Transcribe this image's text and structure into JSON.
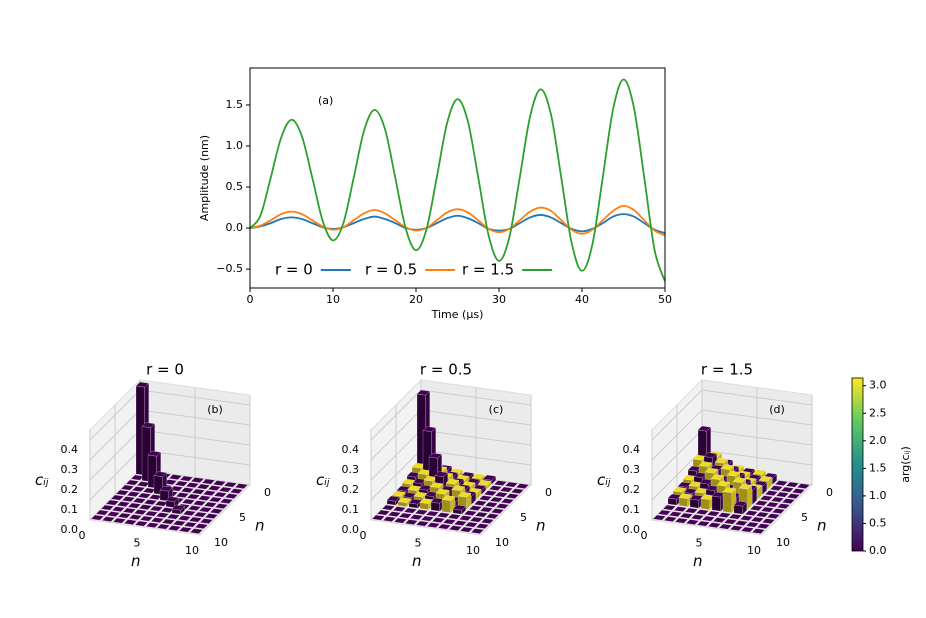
{
  "chart_data": [
    {
      "type": "line",
      "annotation": "(a)",
      "xlabel": "Time (μs)",
      "ylabel": "Amplitude (nm)",
      "x": [
        0,
        1.25,
        2.5,
        3.75,
        5,
        6.25,
        7.5,
        8.75,
        10,
        11.25,
        12.5,
        13.75,
        15,
        16.25,
        17.5,
        18.75,
        20,
        21.25,
        22.5,
        23.75,
        25,
        26.25,
        27.5,
        28.75,
        30,
        31.25,
        32.5,
        33.75,
        35,
        36.25,
        37.5,
        38.75,
        40,
        41.25,
        42.5,
        43.75,
        45,
        46.25,
        47.5,
        48.75,
        50
      ],
      "series": [
        {
          "name": "r = 0",
          "color": "#1f77b4",
          "values": [
            0,
            0.02,
            0.06,
            0.11,
            0.13,
            0.11,
            0.06,
            0.01,
            -0.01,
            0.01,
            0.06,
            0.11,
            0.14,
            0.11,
            0.06,
            0.0,
            -0.02,
            0.0,
            0.06,
            0.12,
            0.15,
            0.12,
            0.06,
            -0.01,
            -0.03,
            -0.01,
            0.06,
            0.13,
            0.16,
            0.13,
            0.06,
            -0.01,
            -0.04,
            -0.01,
            0.06,
            0.14,
            0.17,
            0.14,
            0.06,
            -0.02,
            -0.06
          ]
        },
        {
          "name": "r = 0.5",
          "color": "#ff7f0e",
          "values": [
            0,
            0.03,
            0.095,
            0.17,
            0.2,
            0.17,
            0.095,
            0.02,
            -0.02,
            0.01,
            0.095,
            0.18,
            0.22,
            0.18,
            0.095,
            0.01,
            -0.03,
            0.0,
            0.095,
            0.19,
            0.23,
            0.19,
            0.095,
            -0.01,
            -0.05,
            -0.01,
            0.095,
            0.2,
            0.25,
            0.21,
            0.095,
            -0.02,
            -0.07,
            -0.02,
            0.095,
            0.21,
            0.27,
            0.22,
            0.095,
            -0.03,
            -0.09
          ]
        },
        {
          "name": "r = 1.5",
          "color": "#2ca02c",
          "values": [
            0,
            0.15,
            0.615,
            1.1,
            1.32,
            1.12,
            0.615,
            0.09,
            -0.15,
            0.06,
            0.615,
            1.19,
            1.44,
            1.21,
            0.615,
            0.0,
            -0.27,
            -0.02,
            0.615,
            1.28,
            1.57,
            1.3,
            0.615,
            -0.09,
            -0.4,
            -0.11,
            0.615,
            1.36,
            1.69,
            1.39,
            0.615,
            -0.18,
            -0.52,
            -0.2,
            0.615,
            1.45,
            1.81,
            1.47,
            0.615,
            -0.27,
            -0.65
          ]
        }
      ],
      "xlim": [
        0,
        50
      ],
      "xticks": [
        0,
        10,
        20,
        30,
        40,
        50
      ],
      "ylim": [
        -0.73,
        1.95
      ],
      "yticks": [
        {
          "value": -0.5,
          "label": "−0.5"
        },
        {
          "value": 0,
          "label": "0.0"
        },
        0.5,
        {
          "value": 1,
          "label": "1.0"
        },
        1.5
      ],
      "legend": "lower center"
    },
    {
      "type": "bar3d",
      "title": "r = 0",
      "annotation": "(b)",
      "zlabel": "cᵢⱼ",
      "xlabel": "n",
      "ylabel": "n",
      "xlim": [
        0,
        10
      ],
      "ylim": [
        0,
        10
      ],
      "xticks": [
        0,
        5,
        10
      ],
      "yticks": [
        0,
        5,
        10
      ],
      "zlim": [
        0,
        0.45
      ],
      "zticks": [
        {
          "value": 0,
          "label": "0.0"
        },
        0.1,
        0.2,
        0.3,
        0.4
      ],
      "values": [
        [
          0.44,
          0,
          0,
          0,
          0,
          0,
          0
        ],
        [
          0,
          0.27,
          0,
          0,
          0,
          0,
          0
        ],
        [
          0,
          0,
          0.16,
          0,
          0,
          0,
          0
        ],
        [
          0,
          0,
          0,
          0.09,
          0,
          0,
          0
        ],
        [
          0,
          0,
          0,
          0,
          0.05,
          0,
          0
        ],
        [
          0,
          0,
          0,
          0,
          0,
          0.03,
          0
        ],
        [
          0,
          0,
          0,
          0,
          0,
          0,
          0.02
        ]
      ],
      "phase": [
        [
          0,
          0,
          0,
          0,
          0,
          0,
          0
        ],
        [
          0,
          0,
          0,
          0,
          0,
          0,
          0
        ],
        [
          0,
          0,
          0,
          0,
          0,
          0,
          0
        ],
        [
          0,
          0,
          0,
          0,
          0,
          0,
          0
        ],
        [
          0,
          0,
          0,
          0,
          0,
          0,
          0
        ],
        [
          0,
          0,
          0,
          0,
          0,
          0,
          0
        ],
        [
          0,
          0,
          0,
          0,
          0,
          0,
          0
        ]
      ]
    },
    {
      "type": "bar3d",
      "title": "r = 0.5",
      "annotation": "(c)",
      "zlabel": "cᵢⱼ",
      "xlabel": "n",
      "ylabel": "n",
      "xlim": [
        0,
        10
      ],
      "ylim": [
        0,
        10
      ],
      "xticks": [
        0,
        5,
        10
      ],
      "yticks": [
        0,
        5,
        10
      ],
      "zlim": [
        0,
        0.45
      ],
      "zticks": [
        {
          "value": 0,
          "label": "0.0"
        },
        0.1,
        0.2,
        0.3,
        0.4
      ],
      "values": [
        [
          0.4,
          0.06,
          0.04,
          0.03,
          0.02,
          0.02,
          0.02
        ],
        [
          0.06,
          0.25,
          0.06,
          0.04,
          0.03,
          0.02,
          0.02
        ],
        [
          0.04,
          0.06,
          0.15,
          0.06,
          0.04,
          0.03,
          0.02
        ],
        [
          0.03,
          0.04,
          0.06,
          0.09,
          0.06,
          0.04,
          0.03
        ],
        [
          0.02,
          0.03,
          0.04,
          0.06,
          0.05,
          0.06,
          0.04
        ],
        [
          0.02,
          0.02,
          0.03,
          0.04,
          0.06,
          0.03,
          0.06
        ],
        [
          0.02,
          0.02,
          0.02,
          0.03,
          0.04,
          0.06,
          0.02
        ]
      ],
      "phase": [
        [
          0,
          3.14,
          0,
          3.14,
          0,
          3.14,
          0
        ],
        [
          3.14,
          0,
          3.14,
          0,
          3.14,
          0,
          3.14
        ],
        [
          0,
          3.14,
          0,
          3.14,
          0,
          3.14,
          0
        ],
        [
          3.14,
          0,
          3.14,
          0,
          3.14,
          0,
          3.14
        ],
        [
          0,
          3.14,
          0,
          3.14,
          0,
          3.14,
          0
        ],
        [
          3.14,
          0,
          3.14,
          0,
          3.14,
          0,
          3.14
        ],
        [
          0,
          3.14,
          0,
          3.14,
          0,
          3.14,
          0
        ]
      ]
    },
    {
      "type": "bar3d",
      "title": "r = 1.5",
      "annotation": "(d)",
      "zlabel": "cᵢⱼ",
      "xlabel": "n",
      "ylabel": "n",
      "xlim": [
        0,
        10
      ],
      "ylim": [
        0,
        10
      ],
      "xticks": [
        0,
        5,
        10
      ],
      "yticks": [
        0,
        5,
        10
      ],
      "zlim": [
        0,
        0.45
      ],
      "zticks": [
        {
          "value": 0,
          "label": "0.0"
        },
        0.1,
        0.2,
        0.3,
        0.4
      ],
      "values": [
        [
          0.22,
          0.1,
          0.07,
          0.05,
          0.04,
          0.04,
          0.03
        ],
        [
          0.1,
          0.12,
          0.1,
          0.07,
          0.05,
          0.04,
          0.04
        ],
        [
          0.07,
          0.1,
          0.09,
          0.1,
          0.07,
          0.05,
          0.04
        ],
        [
          0.05,
          0.07,
          0.1,
          0.07,
          0.1,
          0.07,
          0.05
        ],
        [
          0.04,
          0.05,
          0.07,
          0.1,
          0.06,
          0.1,
          0.07
        ],
        [
          0.04,
          0.04,
          0.05,
          0.07,
          0.1,
          0.05,
          0.1
        ],
        [
          0.03,
          0.04,
          0.04,
          0.05,
          0.07,
          0.1,
          0.04
        ]
      ],
      "phase": [
        [
          0,
          3.14,
          0,
          3.14,
          0,
          3.14,
          0
        ],
        [
          3.14,
          0,
          3.14,
          0,
          3.14,
          0,
          3.14
        ],
        [
          0,
          3.14,
          0,
          3.14,
          0,
          3.14,
          0
        ],
        [
          3.14,
          0,
          3.14,
          0,
          3.14,
          0,
          3.14
        ],
        [
          0,
          3.14,
          0,
          3.14,
          0,
          3.14,
          0
        ],
        [
          3.14,
          0,
          3.14,
          0,
          3.14,
          0,
          3.14
        ],
        [
          0,
          3.14,
          0,
          3.14,
          0,
          3.14,
          0
        ]
      ]
    },
    {
      "type": "colorbar",
      "label": "arg(cᵢⱼ)",
      "colormap": "viridis",
      "clim": [
        0,
        3.14
      ],
      "ticks": [
        {
          "value": 0,
          "label": "0.0"
        },
        0.5,
        {
          "value": 1,
          "label": "1.0"
        },
        1.5,
        {
          "value": 2,
          "label": "2.0"
        },
        2.5,
        {
          "value": 3,
          "label": "3.0"
        }
      ]
    }
  ]
}
